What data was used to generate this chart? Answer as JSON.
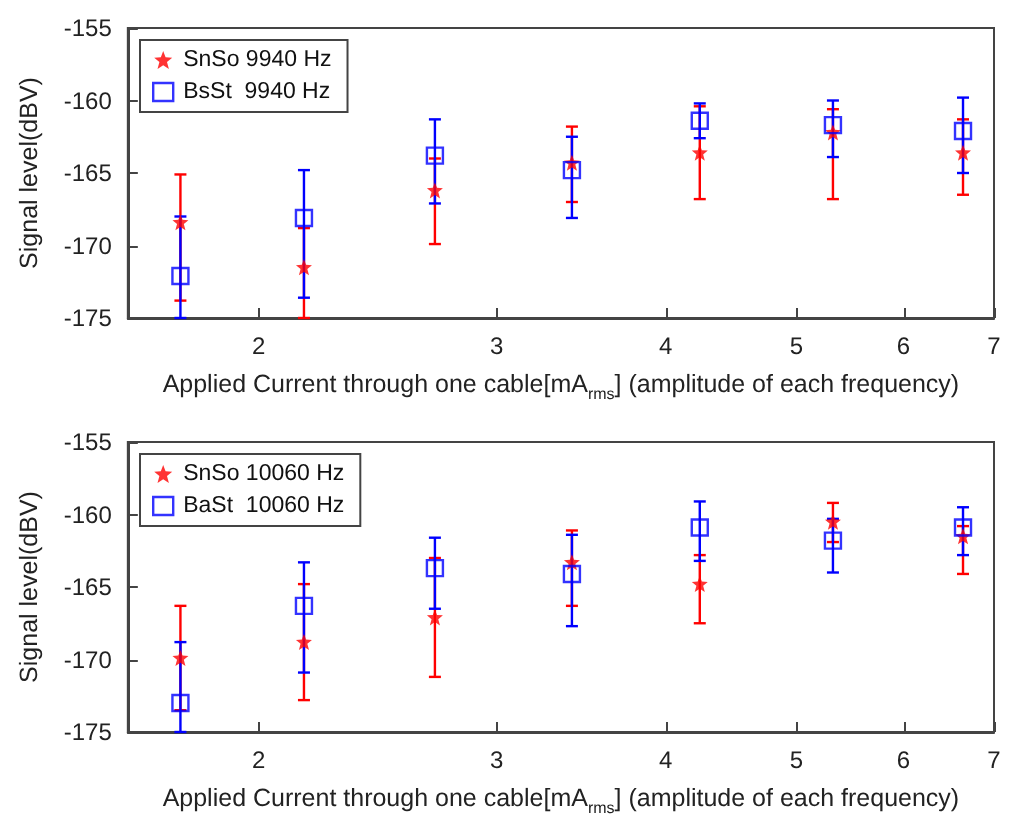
{
  "chart_data": [
    {
      "type": "scatter",
      "xlabel": "Applied Current through one cable[mA$_{rms}$] (amplitude of each frequency)",
      "ylabel": "Signal level(dBV)",
      "log": "x",
      "xlim": [
        1.6,
        7
      ],
      "xticks": [
        2,
        3,
        4,
        5,
        6,
        7
      ],
      "ylim": [
        -175,
        -155
      ],
      "yticks": [
        -175,
        -170,
        -165,
        -160,
        -155
      ],
      "grid": false,
      "legend": "top left",
      "x": [
        1.75,
        2.16,
        2.7,
        3.41,
        4.24,
        5.32,
        6.64
      ],
      "series": [
        {
          "name": "SnSo 9940 Hz",
          "color": "#ff0000",
          "marker": "star",
          "values": [
            -168.4,
            -171.5,
            -166.2,
            -164.3,
            -163.6,
            -162.2,
            -163.6
          ],
          "errors": [
            [
              -173.8,
              -165.1
            ],
            [
              -175,
              -168.8
            ],
            [
              -169.9,
              -164
            ],
            [
              -167,
              -161.8
            ],
            [
              -166.8,
              -160.4
            ],
            [
              -166.8,
              -160.6
            ],
            [
              -166.5,
              -161.3
            ]
          ]
        },
        {
          "name": "BsSt  9940 Hz",
          "color": "#0000ff",
          "marker": "square",
          "values": [
            -172.1,
            -168.1,
            -163.8,
            -164.8,
            -161.4,
            -161.7,
            -162.1
          ],
          "errors": [
            [
              -175,
              -168
            ],
            [
              -173.6,
              -164.8
            ],
            [
              -167.1,
              -161.3
            ],
            [
              -168.1,
              -162.5
            ],
            [
              -162.6,
              -160.2
            ],
            [
              -163.9,
              -160
            ],
            [
              -165,
              -159.8
            ]
          ]
        }
      ]
    },
    {
      "type": "scatter",
      "xlabel": "Applied Current through one cable[mA$_{rms}$] (amplitude of each frequency)",
      "ylabel": "Signal level(dBV)",
      "log": "x",
      "xlim": [
        1.6,
        7
      ],
      "xticks": [
        2,
        3,
        4,
        5,
        6,
        7
      ],
      "ylim": [
        -175,
        -155
      ],
      "yticks": [
        -175,
        -170,
        -165,
        -160,
        -155
      ],
      "grid": false,
      "legend": "top left",
      "x": [
        1.75,
        2.16,
        2.7,
        3.41,
        4.24,
        5.32,
        6.64
      ],
      "series": [
        {
          "name": "SnSo 10060 Hz",
          "color": "#ff0000",
          "marker": "star",
          "values": [
            -169.9,
            -168.8,
            -167.1,
            -163.3,
            -164.8,
            -160.5,
            -161.5
          ],
          "errors": [
            [
              -173.5,
              -166.3
            ],
            [
              -172.8,
              -164.8
            ],
            [
              -171.2,
              -163
            ],
            [
              -166.3,
              -161.1
            ],
            [
              -167.5,
              -162.8
            ],
            [
              -161.9,
              -159.2
            ],
            [
              -164.1,
              -160.8
            ]
          ]
        },
        {
          "name": "BaSt  10060 Hz",
          "color": "#0000ff",
          "marker": "square",
          "values": [
            -173,
            -166.3,
            -163.7,
            -164.1,
            -160.9,
            -161.8,
            -160.9
          ],
          "errors": [
            [
              -175,
              -168.8
            ],
            [
              -170.9,
              -163.3
            ],
            [
              -166.5,
              -161.6
            ],
            [
              -167.7,
              -161.4
            ],
            [
              -163.2,
              -159.1
            ],
            [
              -164,
              -160.3
            ],
            [
              -162.8,
              -159.5
            ]
          ]
        }
      ]
    }
  ]
}
